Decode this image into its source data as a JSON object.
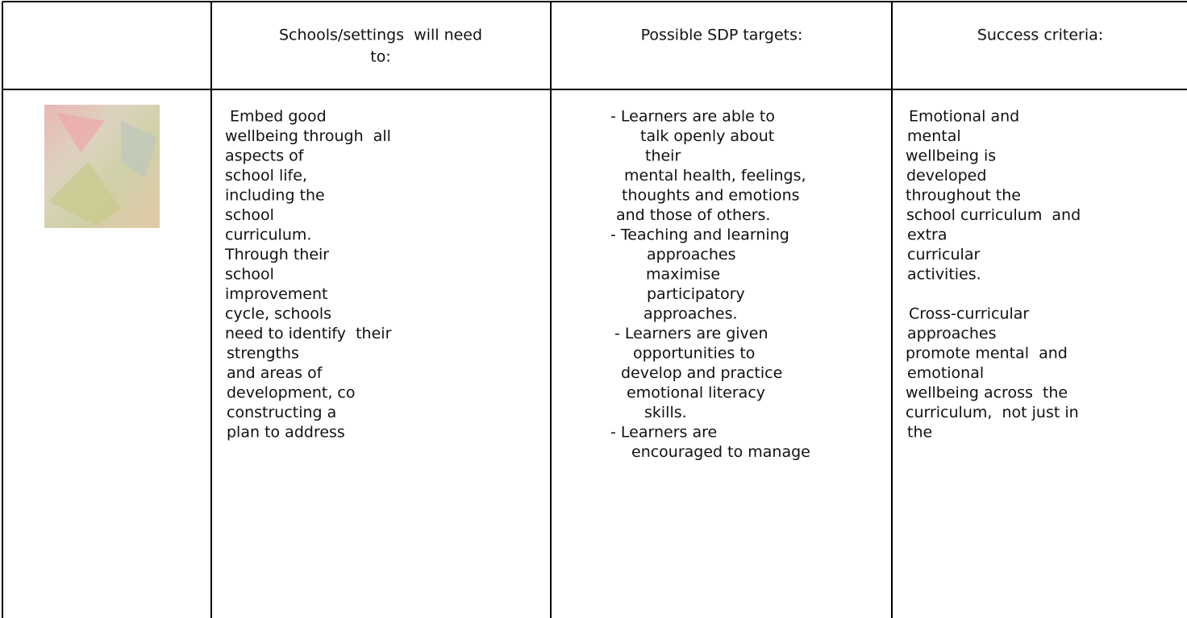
{
  "table": {
    "header": [
      {
        "lines": [
          "Schools/settings  will need",
          "to:"
        ]
      },
      {
        "lines": [
          "Possible SDP targets:"
        ]
      },
      {
        "lines": [
          "Success criteria:"
        ]
      }
    ],
    "body": {
      "needs": [
        "Embed good",
        "wellbeing through  all",
        "aspects of",
        "school life,",
        "including the",
        "school",
        "curriculum.",
        "Through their",
        "school",
        "improvement",
        "cycle, schools",
        "need to identify  their",
        "strengths",
        "and areas of",
        "development, co",
        "constructing a",
        "plan to address"
      ],
      "targets": [
        "- Learners are able to",
        "talk openly about",
        "their",
        "mental health, feelings,",
        "thoughts and emotions",
        "and those of others.",
        "- Teaching and learning",
        "approaches",
        "maximise",
        "participatory",
        "approaches.",
        "- Learners are given",
        "opportunities to",
        "develop and practice",
        "emotional literacy",
        "skills.",
        "- Learners are",
        "encouraged to manage"
      ],
      "criteria": [
        [
          "Emotional and",
          "mental",
          "wellbeing is",
          "developed",
          "throughout the",
          "school curriculum  and",
          "extra",
          "curricular",
          "activities."
        ],
        [
          "Cross-curricular",
          "approaches",
          "promote mental  and",
          "emotional",
          "wellbeing across  the",
          "curriculum,  not just in",
          "the"
        ]
      ]
    }
  }
}
